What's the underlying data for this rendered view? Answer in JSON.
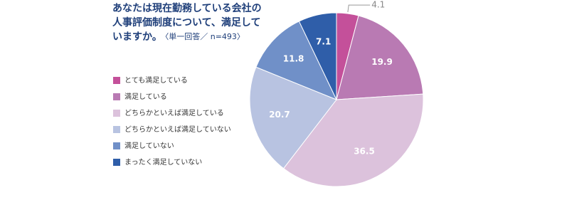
{
  "chart_data": {
    "type": "pie",
    "title": [
      "あなたは現在勤務している会社の",
      "人事評価制度について、満足して",
      "いますか。"
    ],
    "subtitle": "〈単一回答／ n=493〉",
    "categories": [
      "とても満足している",
      "満足している",
      "どちらかといえば満足している",
      "どちらかといえば満足していない",
      "満足していない",
      "まったく満足していない"
    ],
    "values": [
      4.1,
      19.9,
      36.5,
      20.7,
      11.8,
      7.1
    ],
    "colors": [
      "#c4509a",
      "#b97ab3",
      "#dcc2dc",
      "#b8c3e1",
      "#7090c8",
      "#2f5ea9"
    ],
    "legend": "left"
  }
}
